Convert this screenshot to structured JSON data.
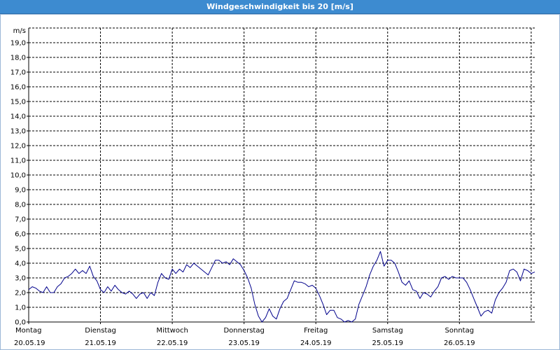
{
  "window": {
    "title": "Windgeschwindigkeit bis 20 [m/s]"
  },
  "chart_data": {
    "type": "line",
    "title": "Windgeschwindigkeit bis 20 [m/s]",
    "ylabel": "m/s",
    "ylim": [
      0,
      20
    ],
    "grid": true,
    "y_ticks": [
      "0,0",
      "1,0",
      "2,0",
      "3,0",
      "4,0",
      "5,0",
      "6,0",
      "7,0",
      "8,0",
      "9,0",
      "10,0",
      "11,0",
      "12,0",
      "13,0",
      "14,0",
      "15,0",
      "16,0",
      "17,0",
      "18,0",
      "19,0"
    ],
    "x_labels": [
      {
        "day": "Montag",
        "date": "20.05.19"
      },
      {
        "day": "Dienstag",
        "date": "21.05.19"
      },
      {
        "day": "Mittwoch",
        "date": "22.05.19"
      },
      {
        "day": "Donnerstag",
        "date": "23.05.19"
      },
      {
        "day": "Freitag",
        "date": "24.05.19"
      },
      {
        "day": "Samstag",
        "date": "25.05.19"
      },
      {
        "day": "Sonntag",
        "date": "26.05.19"
      }
    ],
    "xlim": [
      20.0,
      27.05
    ],
    "line_color": "#00008b",
    "series": [
      {
        "points": [
          [
            20.0,
            2.2
          ],
          [
            20.05,
            2.4
          ],
          [
            20.1,
            2.3
          ],
          [
            20.15,
            2.1
          ],
          [
            20.2,
            2.0
          ],
          [
            20.25,
            2.4
          ],
          [
            20.3,
            2.0
          ],
          [
            20.35,
            2.0
          ],
          [
            20.4,
            2.4
          ],
          [
            20.45,
            2.6
          ],
          [
            20.5,
            3.0
          ],
          [
            20.55,
            3.1
          ],
          [
            20.6,
            3.3
          ],
          [
            20.65,
            3.6
          ],
          [
            20.7,
            3.3
          ],
          [
            20.75,
            3.5
          ],
          [
            20.8,
            3.3
          ],
          [
            20.85,
            3.8
          ],
          [
            20.9,
            3.1
          ],
          [
            20.95,
            2.8
          ],
          [
            21.0,
            2.2
          ],
          [
            21.05,
            2.0
          ],
          [
            21.1,
            2.4
          ],
          [
            21.15,
            2.1
          ],
          [
            21.2,
            2.5
          ],
          [
            21.25,
            2.2
          ],
          [
            21.3,
            2.0
          ],
          [
            21.35,
            1.9
          ],
          [
            21.4,
            2.1
          ],
          [
            21.45,
            1.9
          ],
          [
            21.5,
            1.6
          ],
          [
            21.55,
            1.9
          ],
          [
            21.6,
            2.0
          ],
          [
            21.65,
            1.6
          ],
          [
            21.7,
            2.0
          ],
          [
            21.75,
            1.8
          ],
          [
            21.8,
            2.7
          ],
          [
            21.85,
            3.3
          ],
          [
            21.9,
            3.0
          ],
          [
            21.95,
            2.9
          ],
          [
            22.0,
            3.6
          ],
          [
            22.05,
            3.3
          ],
          [
            22.1,
            3.6
          ],
          [
            22.15,
            3.4
          ],
          [
            22.2,
            3.9
          ],
          [
            22.25,
            3.7
          ],
          [
            22.3,
            4.0
          ],
          [
            22.35,
            3.8
          ],
          [
            22.4,
            3.6
          ],
          [
            22.45,
            3.4
          ],
          [
            22.5,
            3.2
          ],
          [
            22.55,
            3.7
          ],
          [
            22.6,
            4.2
          ],
          [
            22.65,
            4.2
          ],
          [
            22.7,
            4.0
          ],
          [
            22.75,
            4.1
          ],
          [
            22.8,
            3.9
          ],
          [
            22.85,
            4.3
          ],
          [
            22.9,
            4.1
          ],
          [
            22.95,
            3.9
          ],
          [
            23.0,
            3.5
          ],
          [
            23.05,
            3.0
          ],
          [
            23.1,
            2.3
          ],
          [
            23.15,
            1.2
          ],
          [
            23.2,
            0.4
          ],
          [
            23.25,
            0.0
          ],
          [
            23.3,
            0.3
          ],
          [
            23.35,
            0.9
          ],
          [
            23.4,
            0.4
          ],
          [
            23.45,
            0.2
          ],
          [
            23.5,
            0.9
          ],
          [
            23.55,
            1.4
          ],
          [
            23.6,
            1.6
          ],
          [
            23.65,
            2.2
          ],
          [
            23.7,
            2.8
          ],
          [
            23.75,
            2.7
          ],
          [
            23.8,
            2.7
          ],
          [
            23.85,
            2.6
          ],
          [
            23.9,
            2.4
          ],
          [
            23.95,
            2.5
          ],
          [
            24.0,
            2.3
          ],
          [
            24.05,
            1.8
          ],
          [
            24.1,
            1.2
          ],
          [
            24.15,
            0.5
          ],
          [
            24.2,
            0.8
          ],
          [
            24.25,
            0.8
          ],
          [
            24.3,
            0.3
          ],
          [
            24.35,
            0.2
          ],
          [
            24.4,
            0.0
          ],
          [
            24.45,
            0.1
          ],
          [
            24.5,
            0.0
          ],
          [
            24.55,
            0.2
          ],
          [
            24.6,
            1.2
          ],
          [
            24.65,
            1.8
          ],
          [
            24.7,
            2.4
          ],
          [
            24.75,
            3.2
          ],
          [
            24.8,
            3.8
          ],
          [
            24.85,
            4.2
          ],
          [
            24.9,
            4.8
          ],
          [
            24.95,
            3.8
          ],
          [
            25.0,
            4.2
          ],
          [
            25.05,
            4.2
          ],
          [
            25.1,
            4.0
          ],
          [
            25.15,
            3.4
          ],
          [
            25.2,
            2.7
          ],
          [
            25.25,
            2.5
          ],
          [
            25.3,
            2.8
          ],
          [
            25.35,
            2.2
          ],
          [
            25.4,
            2.1
          ],
          [
            25.45,
            1.6
          ],
          [
            25.5,
            2.0
          ],
          [
            25.55,
            1.9
          ],
          [
            25.6,
            1.7
          ],
          [
            25.65,
            2.1
          ],
          [
            25.7,
            2.4
          ],
          [
            25.75,
            3.0
          ],
          [
            25.8,
            3.1
          ],
          [
            25.85,
            2.9
          ],
          [
            25.9,
            3.1
          ],
          [
            25.95,
            3.0
          ],
          [
            26.0,
            3.0
          ],
          [
            26.05,
            3.0
          ],
          [
            26.1,
            2.7
          ],
          [
            26.15,
            2.2
          ],
          [
            26.2,
            1.6
          ],
          [
            26.25,
            1.0
          ],
          [
            26.3,
            0.4
          ],
          [
            26.35,
            0.7
          ],
          [
            26.4,
            0.8
          ],
          [
            26.45,
            0.6
          ],
          [
            26.5,
            1.5
          ],
          [
            26.55,
            2.0
          ],
          [
            26.6,
            2.3
          ],
          [
            26.65,
            2.7
          ],
          [
            26.7,
            3.5
          ],
          [
            26.75,
            3.6
          ],
          [
            26.8,
            3.4
          ],
          [
            26.85,
            2.8
          ],
          [
            26.9,
            3.6
          ],
          [
            26.95,
            3.5
          ],
          [
            27.0,
            3.3
          ],
          [
            27.05,
            3.4
          ]
        ]
      }
    ]
  }
}
